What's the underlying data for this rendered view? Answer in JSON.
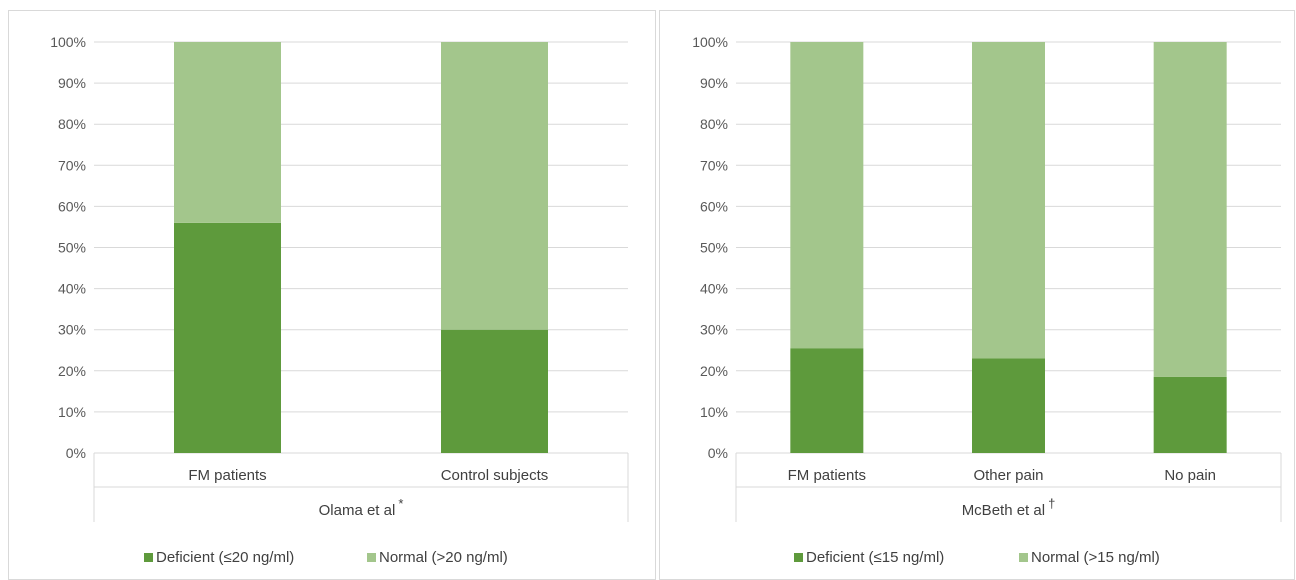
{
  "chart_data": [
    {
      "type": "bar",
      "stacked": true,
      "group_label": "Olama et al",
      "group_marker": "*",
      "categories": [
        "FM patients",
        "Control subjects"
      ],
      "series": [
        {
          "name": "Deficient (≤20 ng/ml)",
          "values": [
            56,
            30
          ],
          "color": "#5e9a3c"
        },
        {
          "name": "Normal (>20 ng/ml)",
          "values": [
            44,
            70
          ],
          "color": "#a3c68c"
        }
      ],
      "ylim": [
        0,
        100
      ],
      "yticks": [
        "0%",
        "10%",
        "20%",
        "30%",
        "40%",
        "50%",
        "60%",
        "70%",
        "80%",
        "90%",
        "100%"
      ],
      "grid": true,
      "legend_position": "bottom"
    },
    {
      "type": "bar",
      "stacked": true,
      "group_label": "McBeth et al",
      "group_marker": "†",
      "categories": [
        "FM patients",
        "Other pain",
        "No pain"
      ],
      "series": [
        {
          "name": "Deficient (≤15 ng/ml)",
          "values": [
            25.5,
            23,
            18.5
          ],
          "color": "#5e9a3c"
        },
        {
          "name": "Normal (>15 ng/ml)",
          "values": [
            74.5,
            77,
            81.5
          ],
          "color": "#a3c68c"
        }
      ],
      "ylim": [
        0,
        100
      ],
      "yticks": [
        "0%",
        "10%",
        "20%",
        "30%",
        "40%",
        "50%",
        "60%",
        "70%",
        "80%",
        "90%",
        "100%"
      ],
      "grid": true,
      "legend_position": "bottom"
    }
  ]
}
